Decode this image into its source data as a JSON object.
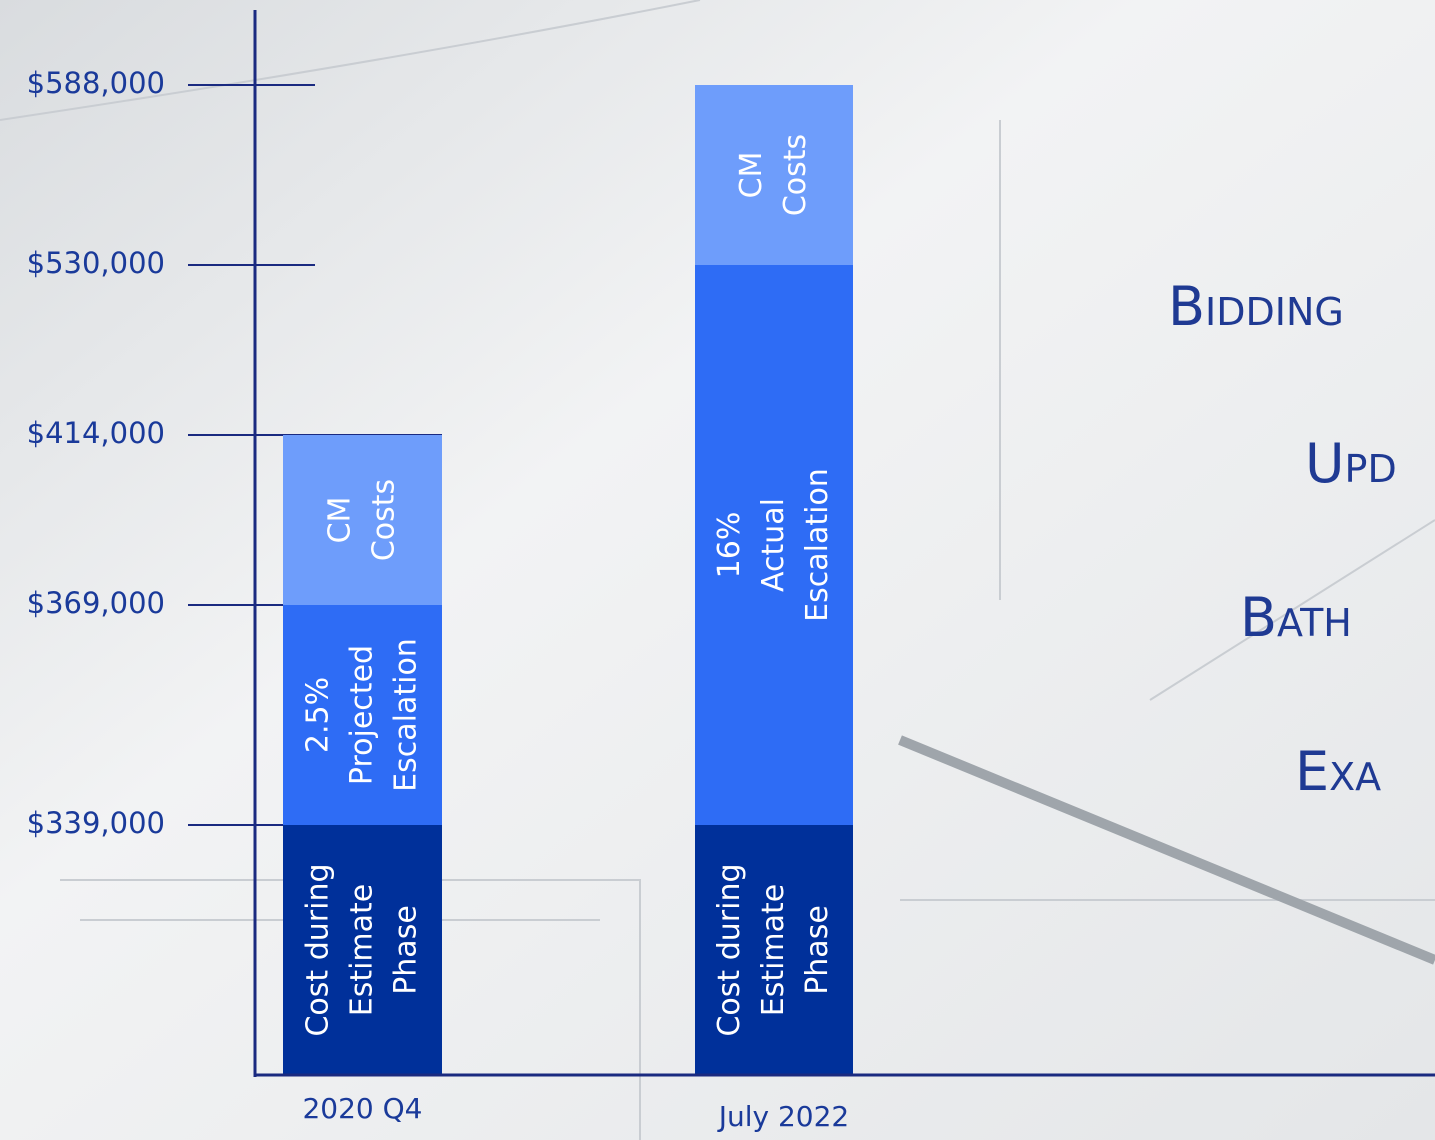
{
  "chart_data": {
    "type": "bar",
    "stacked": true,
    "categories": [
      "2020 Q4",
      "July 2022"
    ],
    "series": [
      {
        "color": "#00309a",
        "values": [
          339000,
          339000
        ],
        "labels": [
          [
            "Cost during",
            "Estimate",
            "Phase"
          ],
          [
            "Cost during",
            "Estimate",
            "Phase"
          ]
        ]
      },
      {
        "color": "#2e6cf5",
        "values": [
          30000,
          191000
        ],
        "labels": [
          [
            "2.5%",
            "Projected",
            "Escalation"
          ],
          [
            "16%",
            "Actual",
            "Escalation"
          ]
        ]
      },
      {
        "color": "#6e9dfb",
        "values": [
          45000,
          58000
        ],
        "labels": [
          [
            "CM",
            "Costs"
          ],
          [
            "CM",
            "Costs"
          ]
        ]
      }
    ],
    "ylim": [
      0,
      588000
    ],
    "yticks": [
      {
        "value": 339000,
        "label": "$339,000"
      },
      {
        "value": 369000,
        "label": "$369,000"
      },
      {
        "value": 414000,
        "label": "$414,000"
      },
      {
        "value": 530000,
        "label": "$530,000"
      },
      {
        "value": 588000,
        "label": "$588,000"
      }
    ]
  },
  "title_lines": [
    "Bidding",
    "Upd",
    "Bath",
    "Exa"
  ]
}
